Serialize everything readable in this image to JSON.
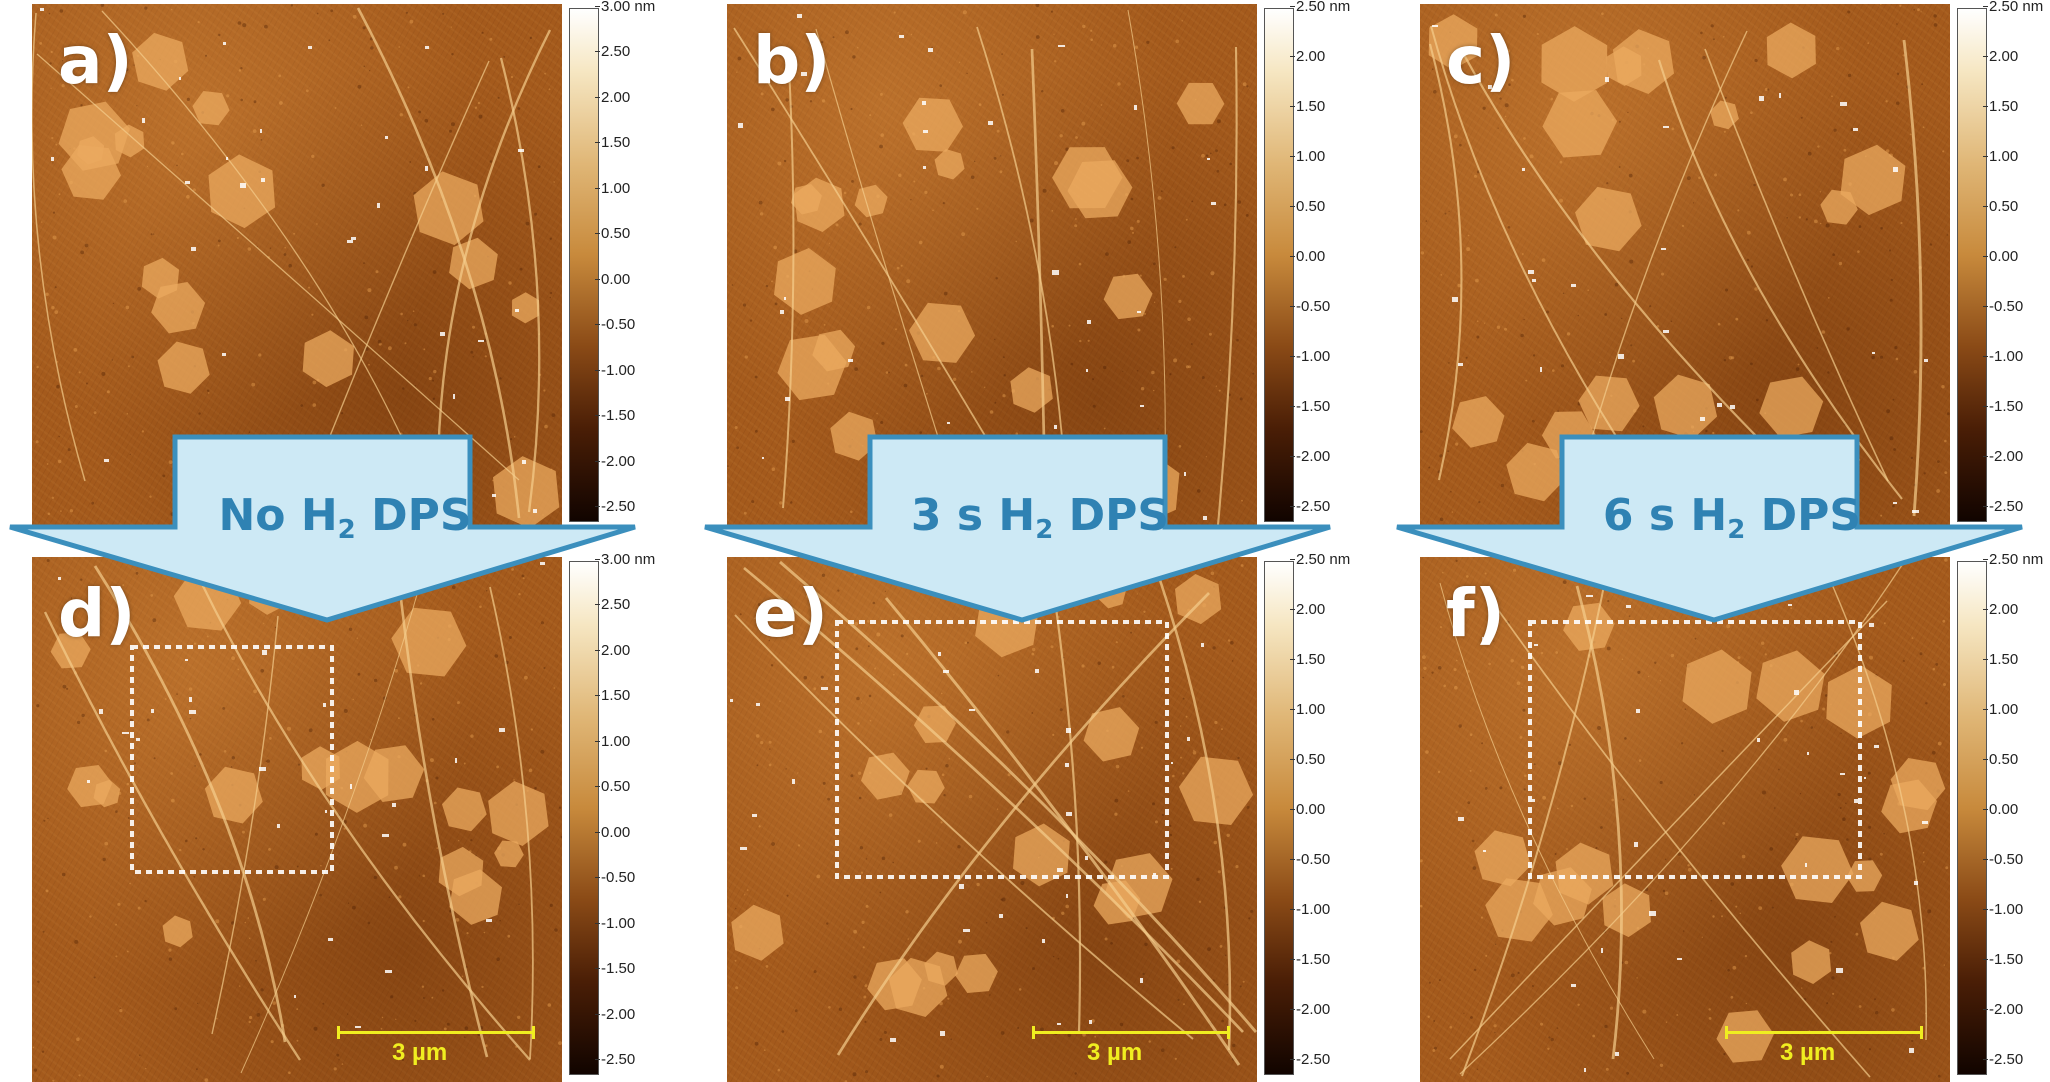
{
  "panels": [
    {
      "label": "a)",
      "colorbar": [
        "3.00 nm",
        "2.50",
        "2.00",
        "1.50",
        "1.00",
        "0.50",
        "0.00",
        "-0.50",
        "-1.00",
        "-1.50",
        "-2.00",
        "-2.50"
      ],
      "scale": ""
    },
    {
      "label": "b)",
      "colorbar": [
        "2.50 nm",
        "2.00",
        "1.50",
        "1.00",
        "0.50",
        "0.00",
        "-0.50",
        "-1.00",
        "-1.50",
        "-2.00",
        "-2.50"
      ],
      "scale": ""
    },
    {
      "label": "c)",
      "colorbar": [
        "2.50 nm",
        "2.00",
        "1.50",
        "1.00",
        "0.50",
        "0.00",
        "-0.50",
        "-1.00",
        "-1.50",
        "-2.00",
        "-2.50"
      ],
      "scale": ""
    },
    {
      "label": "d)",
      "colorbar": [
        "3.00 nm",
        "2.50",
        "2.00",
        "1.50",
        "1.00",
        "0.50",
        "0.00",
        "-0.50",
        "-1.00",
        "-1.50",
        "-2.00",
        "-2.50"
      ],
      "scale": "3 µm"
    },
    {
      "label": "e)",
      "colorbar": [
        "2.50 nm",
        "2.00",
        "1.50",
        "1.00",
        "0.50",
        "0.00",
        "-0.50",
        "-1.00",
        "-1.50",
        "-2.00",
        "-2.50"
      ],
      "scale": "3 µm"
    },
    {
      "label": "f)",
      "colorbar": [
        "2.50 nm",
        "2.00",
        "1.50",
        "1.00",
        "0.50",
        "0.00",
        "-0.50",
        "-1.00",
        "-1.50",
        "-2.00",
        "-2.50"
      ],
      "scale": "3 µm"
    }
  ],
  "arrows": [
    {
      "prefix": "No H",
      "sub": "2",
      "suffix": " DPS"
    },
    {
      "prefix": "3 s H",
      "sub": "2",
      "suffix": " DPS"
    },
    {
      "prefix": "6 s H",
      "sub": "2",
      "suffix": " DPS"
    }
  ],
  "colors": {
    "arrow_fill": "#cde9f5",
    "arrow_stroke": "#3b8fbd",
    "arrow_text": "#2f82b3",
    "scalebar": "#f0ee20"
  }
}
